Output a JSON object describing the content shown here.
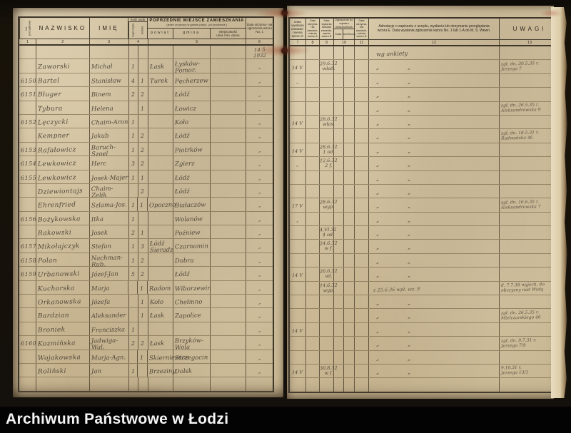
{
  "footer": {
    "archive_label": "Archiwum Państwowe w Łodzi"
  },
  "left_page": {
    "header": {
      "no_col": "No. porządkowy",
      "nazwisko": "NAZWISKO",
      "imie": "IMIĘ",
      "ilosc_title": "Ilość osób",
      "mez": "męż-czyzn",
      "kob": "kobiet",
      "group_title": "POPRZEDNIE MIEJSCE ZAMIESZKANIA",
      "group_sub": "(jeżeli urodzony w gminie pisać: „od urodzenia”)",
      "powiat": "powiat",
      "gmina": "gmina",
      "miejscowosc": "miejscowość\nulica i No. domu",
      "data_col": "Data otrzyma- nia zgłoszenia wzoru No. 1",
      "nums": [
        "1",
        "2",
        "3",
        "4",
        "5",
        "6"
      ]
    },
    "rows": [
      {
        "date": "14 5\n1932"
      },
      {
        "surname": "Zaworski",
        "name": "Michał",
        "m": "1",
        "powiat": "Łask",
        "gmina": "Łysków-Pomor.",
        "date": "„"
      },
      {
        "no": "6150",
        "surname": "Bartel",
        "name": "Stanisław",
        "m": "4",
        "k": "1",
        "powiat": "Turek",
        "gmina": "Pęcherzew",
        "date": "„"
      },
      {
        "no": "6151",
        "surname": "Bługer",
        "name": "Binem",
        "m": "2",
        "k": "2",
        "gmina": "Łódź",
        "date": "„"
      },
      {
        "surname": "Tybura",
        "name": "Helena",
        "k": "1",
        "gmina": "Łowicz",
        "date": "„"
      },
      {
        "no": "6152",
        "surname": "Lęczycki",
        "name": "Chaim-Aron",
        "m": "1",
        "gmina": "Koło",
        "date": "„"
      },
      {
        "surname": "Kempner",
        "name": "Jakub",
        "m": "1",
        "k": "2",
        "gmina": "Łódź",
        "date": "„"
      },
      {
        "no": "6153",
        "surname": "Rafałowicz",
        "name": "Baruch-Szoel",
        "m": "1",
        "k": "2",
        "gmina": "Piotrków",
        "date": "„"
      },
      {
        "no": "6154",
        "surname": "Lewkowicz",
        "name": "Herc",
        "m": "3",
        "k": "2",
        "gmina": "Zgierz",
        "date": "„"
      },
      {
        "no": "6155",
        "surname": "Lewkowicz",
        "name": "Josek-Majer",
        "m": "1",
        "k": "1",
        "gmina": "Łódź",
        "date": "„"
      },
      {
        "surname": "Dziewiontajs",
        "name": "Chaim-Zelik",
        "k": "2",
        "gmina": "Łódź",
        "date": "„"
      },
      {
        "surname": "Ehrenfried",
        "name": "Szlama-Jos.",
        "m": "1",
        "k": "1",
        "powiat": "Opoczno",
        "gmina": "Białaczów",
        "date": "„"
      },
      {
        "no": "6156",
        "surname": "Bożykowska",
        "name": "Itka",
        "m": "1",
        "gmina": "Wolanów",
        "date": "„"
      },
      {
        "surname": "Rakowski",
        "name": "Josek",
        "m": "2",
        "k": "1",
        "gmina": "Poźniew",
        "date": "„"
      },
      {
        "no": "6157",
        "surname": "Mikołajczyk",
        "name": "Stefan",
        "m": "1",
        "k": "3",
        "powiat": "Łódź\nSieradz",
        "gmina": "Czarnomin",
        "date": "„"
      },
      {
        "no": "6158",
        "surname": "Polan",
        "name": "Nachman-Rub.",
        "m": "1",
        "k": "2",
        "gmina": "Dobra",
        "date": "„"
      },
      {
        "no": "6159",
        "surname": "Urbanowski",
        "name": "Józef-Jan",
        "m": "5",
        "k": "2",
        "gmina": "Łódź",
        "date": "„"
      },
      {
        "surname": "Kucharska",
        "name": "Marja",
        "k": "1",
        "powiat": "Radom",
        "gmina": "Wiborzewin",
        "date": "„"
      },
      {
        "surname": "Orkanowska",
        "name": "Józefa",
        "k": "1",
        "powiat": "Koło",
        "gmina": "Chełmno",
        "date": "„"
      },
      {
        "surname": "Bardzian",
        "name": "Aleksander",
        "k": "1",
        "powiat": "Łask",
        "gmina": "Zapolice",
        "date": "„"
      },
      {
        "surname": "Broniek",
        "name": "Franciszka",
        "m": "1",
        "date": "„"
      },
      {
        "no": "6160",
        "surname": "Kozmińska",
        "name": "Jadwiga-Wal.",
        "m": "2",
        "k": "2",
        "powiat": "Łask",
        "gmina": "Brzyków-Wola",
        "date": "„"
      },
      {
        "surname": "Wojakowska",
        "name": "Marja-Agn.",
        "k": "1",
        "powiat": "Skierniewice",
        "gmina": "Strzegocin",
        "date": "„"
      },
      {
        "surname": "Roliński",
        "name": "Jan",
        "m": "1",
        "powiat": "Brzeziny",
        "gmina": "Dolsk",
        "date": "„"
      },
      {}
    ]
  },
  "right_page": {
    "header": {
      "c7": "Data wysłania zawiado- mienia wzoru C",
      "c8": "Data otrzyma- nia zawiado- mienia wzoru A",
      "c9": "Data wydania dowodu zameldo- wania wzoru B",
      "c10_title": "Zgłoszenie do rejestru mieszkańców",
      "c10_data": "Data",
      "c10_tom": "Tom/Strona",
      "c11": "Data otrzyma- nia zawiado- mienia wzoru D",
      "c12": "Adnotacje o zapisaniu z urzędu, wysłaniu lub otrzymaniu przeglądania wzoru E. Data wysłania zgłoszenia wzoru No. 1 lub 1-A do M. S. Wewn.",
      "c13": "UWAGI",
      "nums": [
        "7",
        "8",
        "9",
        "10",
        "11",
        "12",
        "13"
      ]
    },
    "rows": [
      {
        "c12a": "wg ankiety"
      },
      {
        "c7": "14 V",
        "c9": "29.6.32\nwład.",
        "c12a": "„",
        "c12b": "„",
        "uwagi": "zgł. dn. 30.5.35 r.\nJerzego 7"
      },
      {
        "c7": "„",
        "c12a": "„",
        "c12b": "„"
      },
      {
        "c12a": "„",
        "c12b": "„"
      },
      {
        "c12a": "„",
        "c12b": "„",
        "uwagi": "zgł. dn. 26.5.35 r.\nAleksandrowska 9"
      },
      {
        "c7": "14 V",
        "c9": "28.6.32\nwłas.",
        "c12a": "„",
        "c12b": "„"
      },
      {
        "c12a": "„",
        "c12b": "„",
        "uwagi": "zgł. dn. 18.5.31 r.\nRadwańska 46"
      },
      {
        "c7": "14 V",
        "c9": "28.6.32\n1 od.",
        "c12a": "„",
        "c12b": "„"
      },
      {
        "c7": "„",
        "c9": "12.6.32\n2 f.",
        "c12a": "„",
        "c12b": "„"
      },
      {
        "c12a": "„",
        "c12b": "„"
      },
      {
        "c12a": "„",
        "c12b": "„"
      },
      {
        "c7": "17 V",
        "c9": "28.6.32\nwyp.",
        "c12a": "„",
        "c12b": "„",
        "uwagi": "zgł. dn. 16.6.35 r.\nAleksandrowska 7"
      },
      {
        "c7": "„",
        "c12a": "„",
        "c12b": "„"
      },
      {
        "c9": "4.VI.32\n4 od.",
        "c12a": "„",
        "c12b": "„"
      },
      {
        "c9": "24.6.32\nw f.",
        "c12a": "„",
        "c12b": "„"
      },
      {
        "c12a": "„",
        "c12b": "„"
      },
      {
        "c7": "14 V",
        "c9": "26.6.32\nwł.",
        "c12a": "„",
        "c12b": "„"
      },
      {
        "c9": "14.6.32\nwyp.",
        "c12n": "z 25.6.36 wpł. wz. E",
        "uwagi": "d. 7.7.38 wyjech. do\nobczyzny nad Wisłą"
      },
      {
        "c12a": "„",
        "c12b": "„"
      },
      {
        "c12a": "„",
        "c12b": "„",
        "uwagi": "zgł. dn. 26.5.35 r.\nMielczarskiego 46"
      },
      {
        "c7": "14 V",
        "c12a": "„",
        "c12b": "„"
      },
      {
        "c12a": "„",
        "c12b": "„",
        "uwagi": "zgł. dn. 9.7.31 r.\nJerzego 7/9"
      },
      {
        "c12a": "„",
        "c12b": "„"
      },
      {
        "c7": "14 V",
        "c9": "30.8.32\nw f.",
        "c12a": "„",
        "c12b": "„",
        "uwagi": "9.10.31 r.\nJerzego 13/1"
      },
      {}
    ]
  }
}
